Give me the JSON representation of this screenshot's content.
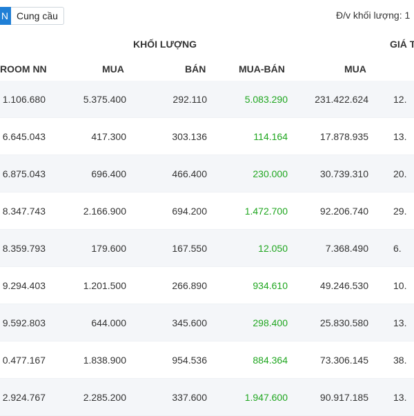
{
  "tabs": {
    "active_label": "N",
    "inactive_label": "Cung cầu"
  },
  "unit_label": "Đ/v khối lượng: 1",
  "groups": {
    "volume": "KHỐI LƯỢNG",
    "value": "GIÁ T"
  },
  "columns": {
    "room": "ROOM NN",
    "mua": "MUA",
    "ban": "BÁN",
    "muaban": "MUA-BÁN",
    "gt_mua": "MUA"
  },
  "rows": [
    {
      "room": "1.106.680",
      "mua": "5.375.400",
      "ban": "292.110",
      "muaban": "5.083.290",
      "gt_mua": "231.422.624",
      "gt_ban": "12."
    },
    {
      "room": "6.645.043",
      "mua": "417.300",
      "ban": "303.136",
      "muaban": "114.164",
      "gt_mua": "17.878.935",
      "gt_ban": "13."
    },
    {
      "room": "6.875.043",
      "mua": "696.400",
      "ban": "466.400",
      "muaban": "230.000",
      "gt_mua": "30.739.310",
      "gt_ban": "20."
    },
    {
      "room": "8.347.743",
      "mua": "2.166.900",
      "ban": "694.200",
      "muaban": "1.472.700",
      "gt_mua": "92.206.740",
      "gt_ban": "29."
    },
    {
      "room": "8.359.793",
      "mua": "179.600",
      "ban": "167.550",
      "muaban": "12.050",
      "gt_mua": "7.368.490",
      "gt_ban": "6."
    },
    {
      "room": "9.294.403",
      "mua": "1.201.500",
      "ban": "266.890",
      "muaban": "934.610",
      "gt_mua": "49.246.530",
      "gt_ban": "10."
    },
    {
      "room": "9.592.803",
      "mua": "644.000",
      "ban": "345.600",
      "muaban": "298.400",
      "gt_mua": "25.830.580",
      "gt_ban": "13."
    },
    {
      "room": "0.477.167",
      "mua": "1.838.900",
      "ban": "954.536",
      "muaban": "884.364",
      "gt_mua": "73.306.145",
      "gt_ban": "38."
    },
    {
      "room": "2.924.767",
      "mua": "2.285.200",
      "ban": "337.600",
      "muaban": "1.947.600",
      "gt_mua": "90.917.185",
      "gt_ban": "13."
    }
  ],
  "colors": {
    "accent": "#1f7fd6",
    "positive": "#1fa61f",
    "row_alt": "#f4f6f9"
  }
}
